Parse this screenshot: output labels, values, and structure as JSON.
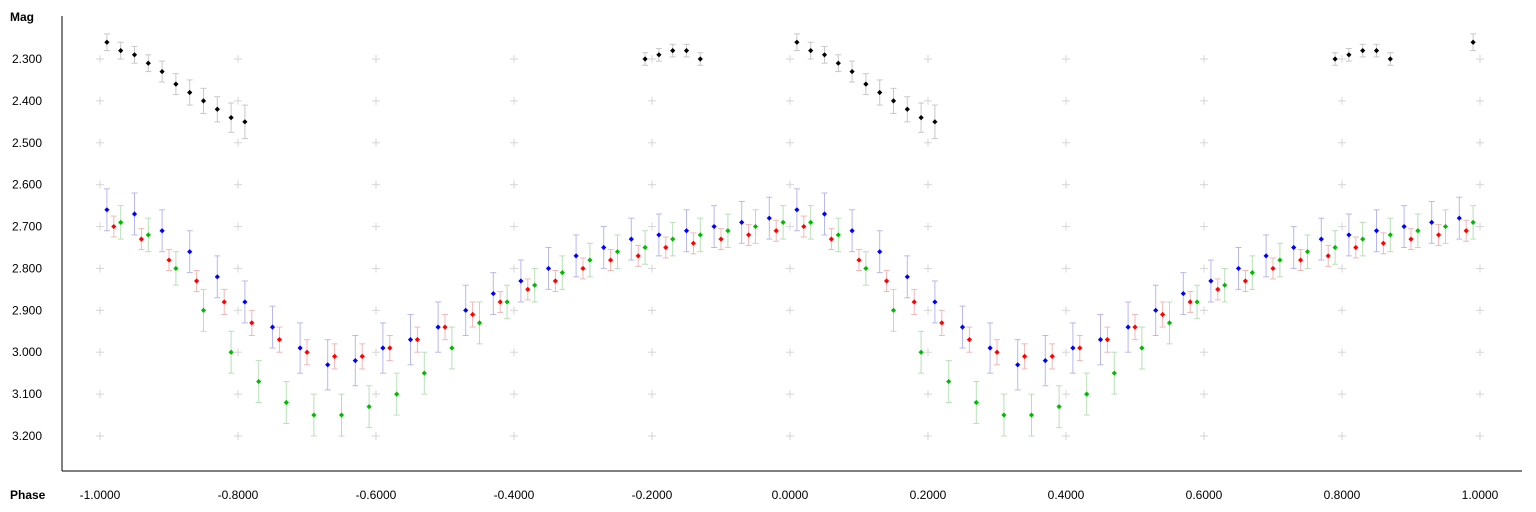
{
  "chart_data": {
    "type": "scatter",
    "xlabel": "Phase",
    "ylabel": "Mag",
    "xlim": [
      -1.05,
      1.05
    ],
    "ylim": [
      2.21,
      3.28
    ],
    "y_inverted": true,
    "grid": "cross-markers",
    "x_ticks": [
      -1.0,
      -0.8,
      -0.6,
      -0.4,
      -0.2,
      0.0,
      0.2,
      0.4,
      0.6,
      0.8,
      1.0
    ],
    "x_tick_labels": [
      "-1.0000",
      "-0.8000",
      "-0.6000",
      "-0.4000",
      "-0.2000",
      "0.0000",
      "0.2000",
      "0.4000",
      "0.6000",
      "0.8000",
      "1.0000"
    ],
    "y_ticks": [
      2.3,
      2.4,
      2.5,
      2.6,
      2.7,
      2.8,
      2.9,
      3.0,
      3.1,
      3.2
    ],
    "y_tick_labels": [
      "2.300",
      "2.400",
      "2.500",
      "2.600",
      "2.700",
      "2.800",
      "2.900",
      "3.000",
      "3.100",
      "3.200"
    ],
    "series": [
      {
        "color": "#000000",
        "error_color": "#c8c8c8",
        "x": [
          -0.99,
          -0.97,
          -0.95,
          -0.93,
          -0.91,
          -0.89,
          -0.87,
          -0.85,
          -0.83,
          -0.81,
          -0.79,
          -0.21,
          -0.19,
          -0.17,
          -0.15,
          -0.13,
          0.01,
          0.03,
          0.05,
          0.07,
          0.09,
          0.11,
          0.13,
          0.15,
          0.17,
          0.19,
          0.21,
          0.79,
          0.81,
          0.83,
          0.85,
          0.87,
          0.99
        ],
        "y": [
          2.26,
          2.28,
          2.29,
          2.31,
          2.33,
          2.36,
          2.38,
          2.4,
          2.42,
          2.44,
          2.45,
          2.3,
          2.29,
          2.28,
          2.28,
          2.3,
          2.26,
          2.28,
          2.29,
          2.31,
          2.33,
          2.36,
          2.38,
          2.4,
          2.42,
          2.44,
          2.45,
          2.3,
          2.29,
          2.28,
          2.28,
          2.3,
          2.26
        ],
        "err": [
          0.02,
          0.02,
          0.02,
          0.02,
          0.025,
          0.025,
          0.03,
          0.03,
          0.03,
          0.035,
          0.04,
          0.015,
          0.015,
          0.015,
          0.015,
          0.015,
          0.02,
          0.02,
          0.02,
          0.02,
          0.025,
          0.025,
          0.03,
          0.03,
          0.03,
          0.035,
          0.04,
          0.015,
          0.015,
          0.015,
          0.015,
          0.015,
          0.02
        ]
      },
      {
        "color": "#0000ff",
        "error_color": "#b8b8f0",
        "x": [
          -0.99,
          -0.95,
          -0.91,
          -0.87,
          -0.83,
          -0.79,
          -0.75,
          -0.71,
          -0.67,
          -0.63,
          -0.59,
          -0.55,
          -0.51,
          -0.47,
          -0.43,
          -0.39,
          -0.35,
          -0.31,
          -0.27,
          -0.23,
          -0.19,
          -0.15,
          -0.11,
          -0.07,
          -0.03,
          0.01,
          0.05,
          0.09,
          0.13,
          0.17,
          0.21,
          0.25,
          0.29,
          0.33,
          0.37,
          0.41,
          0.45,
          0.49,
          0.53,
          0.57,
          0.61,
          0.65,
          0.69,
          0.73,
          0.77,
          0.81,
          0.85,
          0.89,
          0.93,
          0.97
        ],
        "y": [
          2.66,
          2.67,
          2.71,
          2.76,
          2.82,
          2.88,
          2.94,
          2.99,
          3.03,
          3.02,
          2.99,
          2.97,
          2.94,
          2.9,
          2.86,
          2.83,
          2.8,
          2.77,
          2.75,
          2.73,
          2.72,
          2.71,
          2.7,
          2.69,
          2.68,
          2.66,
          2.67,
          2.71,
          2.76,
          2.82,
          2.88,
          2.94,
          2.99,
          3.03,
          3.02,
          2.99,
          2.97,
          2.94,
          2.9,
          2.86,
          2.83,
          2.8,
          2.77,
          2.75,
          2.73,
          2.72,
          2.71,
          2.7,
          2.69,
          2.68
        ],
        "err": [
          0.05,
          0.05,
          0.05,
          0.05,
          0.05,
          0.05,
          0.05,
          0.06,
          0.06,
          0.06,
          0.06,
          0.06,
          0.06,
          0.06,
          0.05,
          0.05,
          0.05,
          0.05,
          0.05,
          0.05,
          0.05,
          0.05,
          0.05,
          0.05,
          0.05,
          0.05,
          0.05,
          0.05,
          0.05,
          0.05,
          0.05,
          0.05,
          0.06,
          0.06,
          0.06,
          0.06,
          0.06,
          0.06,
          0.06,
          0.05,
          0.05,
          0.05,
          0.05,
          0.05,
          0.05,
          0.05,
          0.05,
          0.05,
          0.05,
          0.05
        ]
      },
      {
        "color": "#ff0000",
        "error_color": "#f0b8b8",
        "x": [
          -0.98,
          -0.94,
          -0.9,
          -0.86,
          -0.82,
          -0.78,
          -0.74,
          -0.7,
          -0.66,
          -0.62,
          -0.58,
          -0.54,
          -0.5,
          -0.46,
          -0.42,
          -0.38,
          -0.34,
          -0.3,
          -0.26,
          -0.22,
          -0.18,
          -0.14,
          -0.1,
          -0.06,
          -0.02,
          0.02,
          0.06,
          0.1,
          0.14,
          0.18,
          0.22,
          0.26,
          0.3,
          0.34,
          0.38,
          0.42,
          0.46,
          0.5,
          0.54,
          0.58,
          0.62,
          0.66,
          0.7,
          0.74,
          0.78,
          0.82,
          0.86,
          0.9,
          0.94,
          0.98
        ],
        "y": [
          2.7,
          2.73,
          2.78,
          2.83,
          2.88,
          2.93,
          2.97,
          3.0,
          3.01,
          3.01,
          2.99,
          2.97,
          2.94,
          2.91,
          2.88,
          2.85,
          2.83,
          2.8,
          2.78,
          2.77,
          2.75,
          2.74,
          2.73,
          2.72,
          2.71,
          2.7,
          2.73,
          2.78,
          2.83,
          2.88,
          2.93,
          2.97,
          3.0,
          3.01,
          3.01,
          2.99,
          2.97,
          2.94,
          2.91,
          2.88,
          2.85,
          2.83,
          2.8,
          2.78,
          2.77,
          2.75,
          2.74,
          2.73,
          2.72,
          2.71
        ],
        "err": [
          0.025,
          0.025,
          0.025,
          0.025,
          0.03,
          0.03,
          0.03,
          0.03,
          0.03,
          0.03,
          0.03,
          0.03,
          0.03,
          0.03,
          0.025,
          0.025,
          0.025,
          0.025,
          0.025,
          0.025,
          0.025,
          0.025,
          0.025,
          0.025,
          0.025,
          0.025,
          0.025,
          0.025,
          0.025,
          0.03,
          0.03,
          0.03,
          0.03,
          0.03,
          0.03,
          0.03,
          0.03,
          0.03,
          0.03,
          0.025,
          0.025,
          0.025,
          0.025,
          0.025,
          0.025,
          0.025,
          0.025,
          0.025,
          0.025,
          0.025
        ]
      },
      {
        "color": "#00bb00",
        "error_color": "#b8e0b8",
        "x": [
          -0.97,
          -0.93,
          -0.89,
          -0.85,
          -0.81,
          -0.77,
          -0.73,
          -0.69,
          -0.65,
          -0.61,
          -0.57,
          -0.53,
          -0.49,
          -0.45,
          -0.41,
          -0.37,
          -0.33,
          -0.29,
          -0.25,
          -0.21,
          -0.17,
          -0.13,
          -0.09,
          -0.05,
          -0.01,
          0.03,
          0.07,
          0.11,
          0.15,
          0.19,
          0.23,
          0.27,
          0.31,
          0.35,
          0.39,
          0.43,
          0.47,
          0.51,
          0.55,
          0.59,
          0.63,
          0.67,
          0.71,
          0.75,
          0.79,
          0.83,
          0.87,
          0.91,
          0.95,
          0.99
        ],
        "y": [
          2.69,
          2.72,
          2.8,
          2.9,
          3.0,
          3.07,
          3.12,
          3.15,
          3.15,
          3.13,
          3.1,
          3.05,
          2.99,
          2.93,
          2.88,
          2.84,
          2.81,
          2.78,
          2.76,
          2.75,
          2.73,
          2.72,
          2.71,
          2.7,
          2.69,
          2.69,
          2.72,
          2.8,
          2.9,
          3.0,
          3.07,
          3.12,
          3.15,
          3.15,
          3.13,
          3.1,
          3.05,
          2.99,
          2.93,
          2.88,
          2.84,
          2.81,
          2.78,
          2.76,
          2.75,
          2.73,
          2.72,
          2.71,
          2.7,
          2.69
        ],
        "err": [
          0.04,
          0.04,
          0.04,
          0.05,
          0.05,
          0.05,
          0.05,
          0.05,
          0.05,
          0.05,
          0.05,
          0.05,
          0.05,
          0.05,
          0.04,
          0.04,
          0.04,
          0.04,
          0.04,
          0.04,
          0.04,
          0.04,
          0.04,
          0.04,
          0.04,
          0.04,
          0.04,
          0.04,
          0.05,
          0.05,
          0.05,
          0.05,
          0.05,
          0.05,
          0.05,
          0.05,
          0.05,
          0.05,
          0.05,
          0.04,
          0.04,
          0.04,
          0.04,
          0.04,
          0.04,
          0.04,
          0.04,
          0.04,
          0.04,
          0.04
        ]
      }
    ]
  }
}
